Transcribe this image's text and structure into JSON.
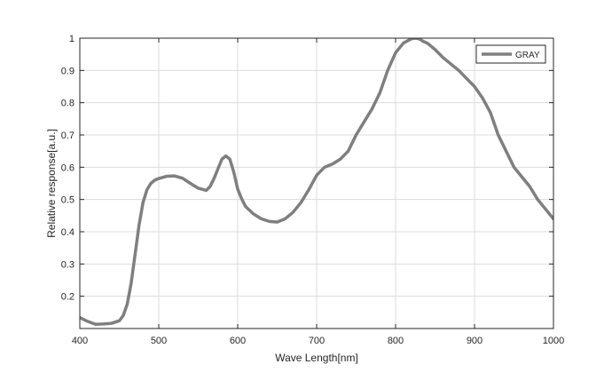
{
  "chart_data": {
    "type": "line",
    "xlabel": "Wave Length[nm]",
    "ylabel": "Relative response[a.u.]",
    "xlim": [
      400,
      1000
    ],
    "ylim": [
      0.1,
      1
    ],
    "xticks": [
      400,
      500,
      600,
      700,
      800,
      900,
      1000
    ],
    "xtick_labels": [
      "400",
      "500",
      "600",
      "700",
      "800",
      "900",
      "1000"
    ],
    "yticks": [
      0.2,
      0.3,
      0.4,
      0.5,
      0.6,
      0.7,
      0.8,
      0.9,
      1
    ],
    "ytick_labels": [
      "0.2",
      "0.3",
      "0.4",
      "0.5",
      "0.6",
      "0.7",
      "0.8",
      "0.9",
      "1"
    ],
    "grid": true,
    "legend_position": "top-right",
    "series": [
      {
        "name": "GRAY",
        "color": "#7f7f7f",
        "x": [
          400,
          410,
          420,
          430,
          440,
          450,
          455,
          460,
          465,
          470,
          475,
          480,
          485,
          490,
          495,
          500,
          510,
          520,
          530,
          540,
          550,
          560,
          565,
          570,
          575,
          580,
          585,
          590,
          595,
          600,
          605,
          610,
          620,
          630,
          640,
          650,
          660,
          670,
          680,
          690,
          700,
          710,
          720,
          730,
          740,
          750,
          760,
          770,
          780,
          790,
          800,
          810,
          820,
          825,
          830,
          835,
          840,
          850,
          860,
          870,
          880,
          890,
          900,
          910,
          920,
          930,
          940,
          950,
          960,
          970,
          980,
          990,
          1000
        ],
        "y": [
          0.134,
          0.122,
          0.113,
          0.114,
          0.116,
          0.124,
          0.14,
          0.175,
          0.24,
          0.33,
          0.42,
          0.49,
          0.53,
          0.55,
          0.56,
          0.565,
          0.572,
          0.573,
          0.566,
          0.55,
          0.535,
          0.528,
          0.54,
          0.565,
          0.595,
          0.625,
          0.635,
          0.625,
          0.585,
          0.532,
          0.502,
          0.478,
          0.455,
          0.44,
          0.432,
          0.43,
          0.44,
          0.46,
          0.49,
          0.53,
          0.575,
          0.6,
          0.61,
          0.625,
          0.65,
          0.7,
          0.74,
          0.78,
          0.83,
          0.9,
          0.955,
          0.985,
          0.998,
          1.0,
          0.998,
          0.99,
          0.985,
          0.965,
          0.94,
          0.92,
          0.9,
          0.875,
          0.85,
          0.815,
          0.77,
          0.7,
          0.65,
          0.6,
          0.57,
          0.54,
          0.5,
          0.47,
          0.44
        ]
      }
    ]
  }
}
